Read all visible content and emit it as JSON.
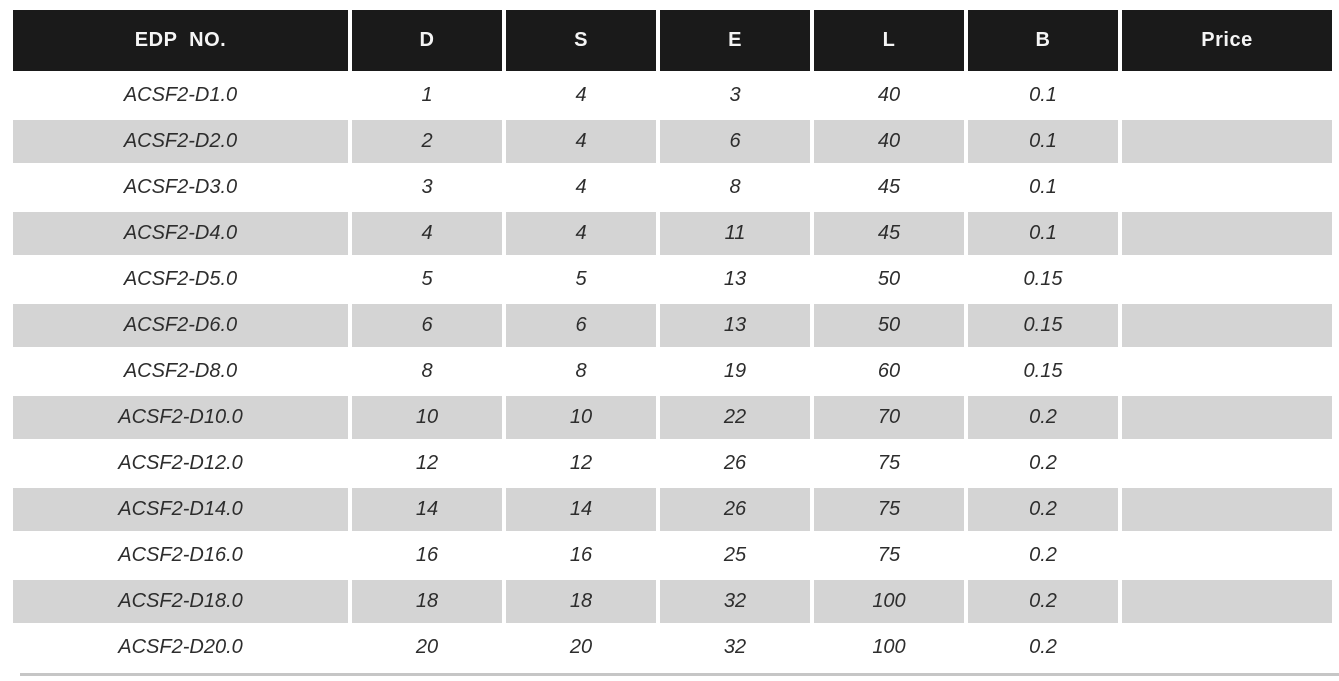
{
  "table": {
    "columns": [
      {
        "key": "edp",
        "label": "EDP  NO."
      },
      {
        "key": "d",
        "label": "D"
      },
      {
        "key": "s",
        "label": "S"
      },
      {
        "key": "e",
        "label": "E"
      },
      {
        "key": "l",
        "label": "L"
      },
      {
        "key": "b",
        "label": "B"
      },
      {
        "key": "price",
        "label": "Price"
      }
    ],
    "rows": [
      {
        "edp": "ACSF2-D1.0",
        "d": "1",
        "s": "4",
        "e": "3",
        "l": "40",
        "b": "0.1",
        "price": ""
      },
      {
        "edp": "ACSF2-D2.0",
        "d": "2",
        "s": "4",
        "e": "6",
        "l": "40",
        "b": "0.1",
        "price": ""
      },
      {
        "edp": "ACSF2-D3.0",
        "d": "3",
        "s": "4",
        "e": "8",
        "l": "45",
        "b": "0.1",
        "price": ""
      },
      {
        "edp": "ACSF2-D4.0",
        "d": "4",
        "s": "4",
        "e": "11",
        "l": "45",
        "b": "0.1",
        "price": ""
      },
      {
        "edp": "ACSF2-D5.0",
        "d": "5",
        "s": "5",
        "e": "13",
        "l": "50",
        "b": "0.15",
        "price": ""
      },
      {
        "edp": "ACSF2-D6.0",
        "d": "6",
        "s": "6",
        "e": "13",
        "l": "50",
        "b": "0.15",
        "price": ""
      },
      {
        "edp": "ACSF2-D8.0",
        "d": "8",
        "s": "8",
        "e": "19",
        "l": "60",
        "b": "0.15",
        "price": ""
      },
      {
        "edp": "ACSF2-D10.0",
        "d": "10",
        "s": "10",
        "e": "22",
        "l": "70",
        "b": "0.2",
        "price": ""
      },
      {
        "edp": "ACSF2-D12.0",
        "d": "12",
        "s": "12",
        "e": "26",
        "l": "75",
        "b": "0.2",
        "price": ""
      },
      {
        "edp": "ACSF2-D14.0",
        "d": "14",
        "s": "14",
        "e": "26",
        "l": "75",
        "b": "0.2",
        "price": ""
      },
      {
        "edp": "ACSF2-D16.0",
        "d": "16",
        "s": "16",
        "e": "25",
        "l": "75",
        "b": "0.2",
        "price": ""
      },
      {
        "edp": "ACSF2-D18.0",
        "d": "18",
        "s": "18",
        "e": "32",
        "l": "100",
        "b": "0.2",
        "price": ""
      },
      {
        "edp": "ACSF2-D20.0",
        "d": "20",
        "s": "20",
        "e": "32",
        "l": "100",
        "b": "0.2",
        "price": ""
      }
    ]
  },
  "colors": {
    "header_bg": "#1a1a1a",
    "header_text": "#f5f5f5",
    "row_bg": "#ffffff",
    "row_alt_bg": "#d4d4d4",
    "cell_text": "#2d2d2d",
    "bottom_rule": "#c6c6c6"
  }
}
